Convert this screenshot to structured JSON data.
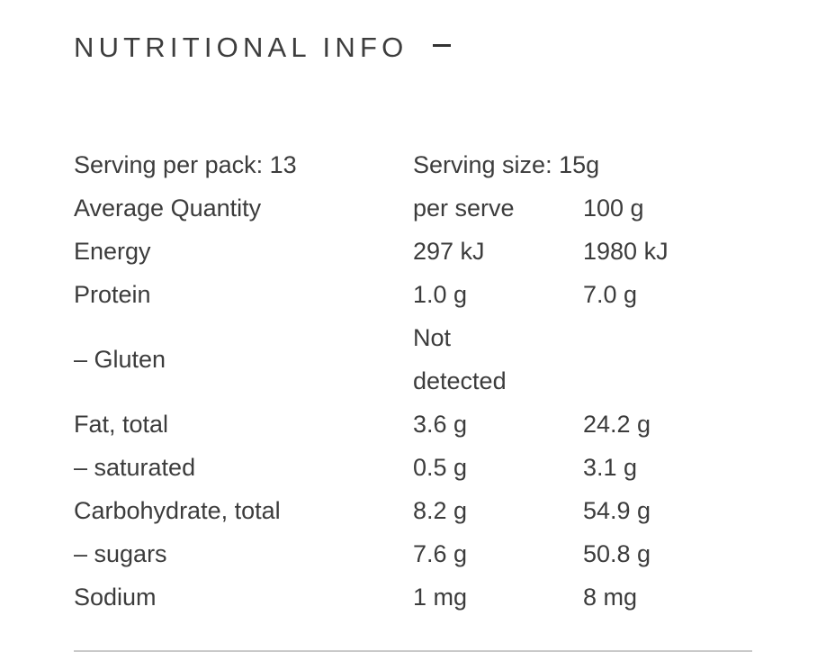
{
  "section": {
    "title": "NUTRITIONAL INFO",
    "toggle_icon": "minus-icon"
  },
  "table": {
    "serving_per_pack": "Serving per pack: 13",
    "serving_size": "Serving size: 15g",
    "header": {
      "label": "Average Quantity",
      "per_serve": "per serve",
      "per_100g": "100 g"
    },
    "rows": [
      {
        "label": "Energy",
        "per_serve": "297 kJ",
        "per_100g": "1980 kJ"
      },
      {
        "label": "Protein",
        "per_serve": "1.0 g",
        "per_100g": "7.0 g"
      },
      {
        "label": "– Gluten",
        "per_serve_line1": "Not",
        "per_serve_line2": "detected",
        "per_100g": ""
      },
      {
        "label": "Fat, total",
        "per_serve": "3.6 g",
        "per_100g": "24.2 g"
      },
      {
        "label": "– saturated",
        "per_serve": "0.5 g",
        "per_100g": "3.1 g"
      },
      {
        "label": "Carbohydrate, total",
        "per_serve": "8.2 g",
        "per_100g": "54.9 g"
      },
      {
        "label": "– sugars",
        "per_serve": "7.6 g",
        "per_100g": "50.8 g"
      },
      {
        "label": "Sodium",
        "per_serve": "1 mg",
        "per_100g": "8 mg"
      }
    ]
  }
}
